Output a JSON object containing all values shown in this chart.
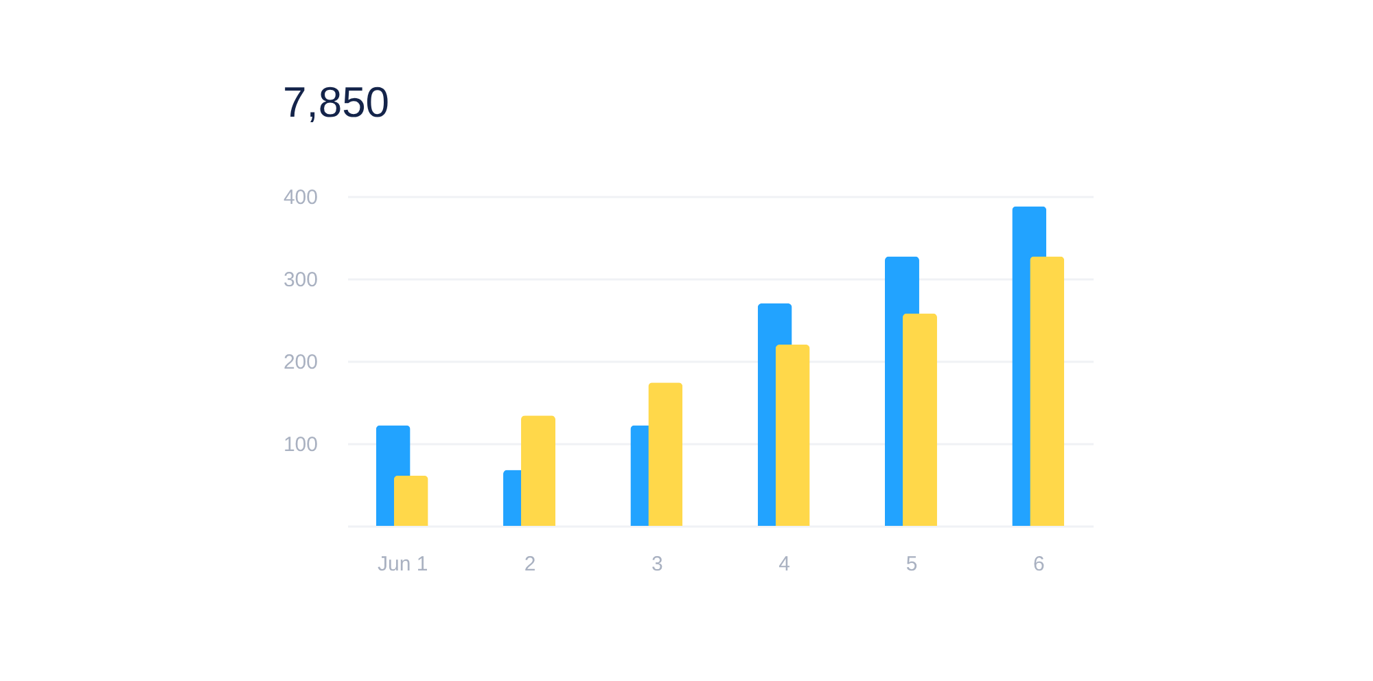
{
  "chart_data": {
    "type": "bar",
    "title": "7,850",
    "categories": [
      "Jun 1",
      "2",
      "3",
      "4",
      "5",
      "6"
    ],
    "series": [
      {
        "color": "#22a3ff",
        "values": [
          122,
          68,
          122,
          270,
          327,
          388
        ]
      },
      {
        "color": "#ffd84a",
        "values": [
          61,
          134,
          174,
          220,
          258,
          327
        ]
      }
    ],
    "ylim": [
      0,
      400
    ],
    "yticks": [
      {
        "value": 0,
        "label": null
      },
      100,
      200,
      300,
      400
    ],
    "grid": "y"
  }
}
